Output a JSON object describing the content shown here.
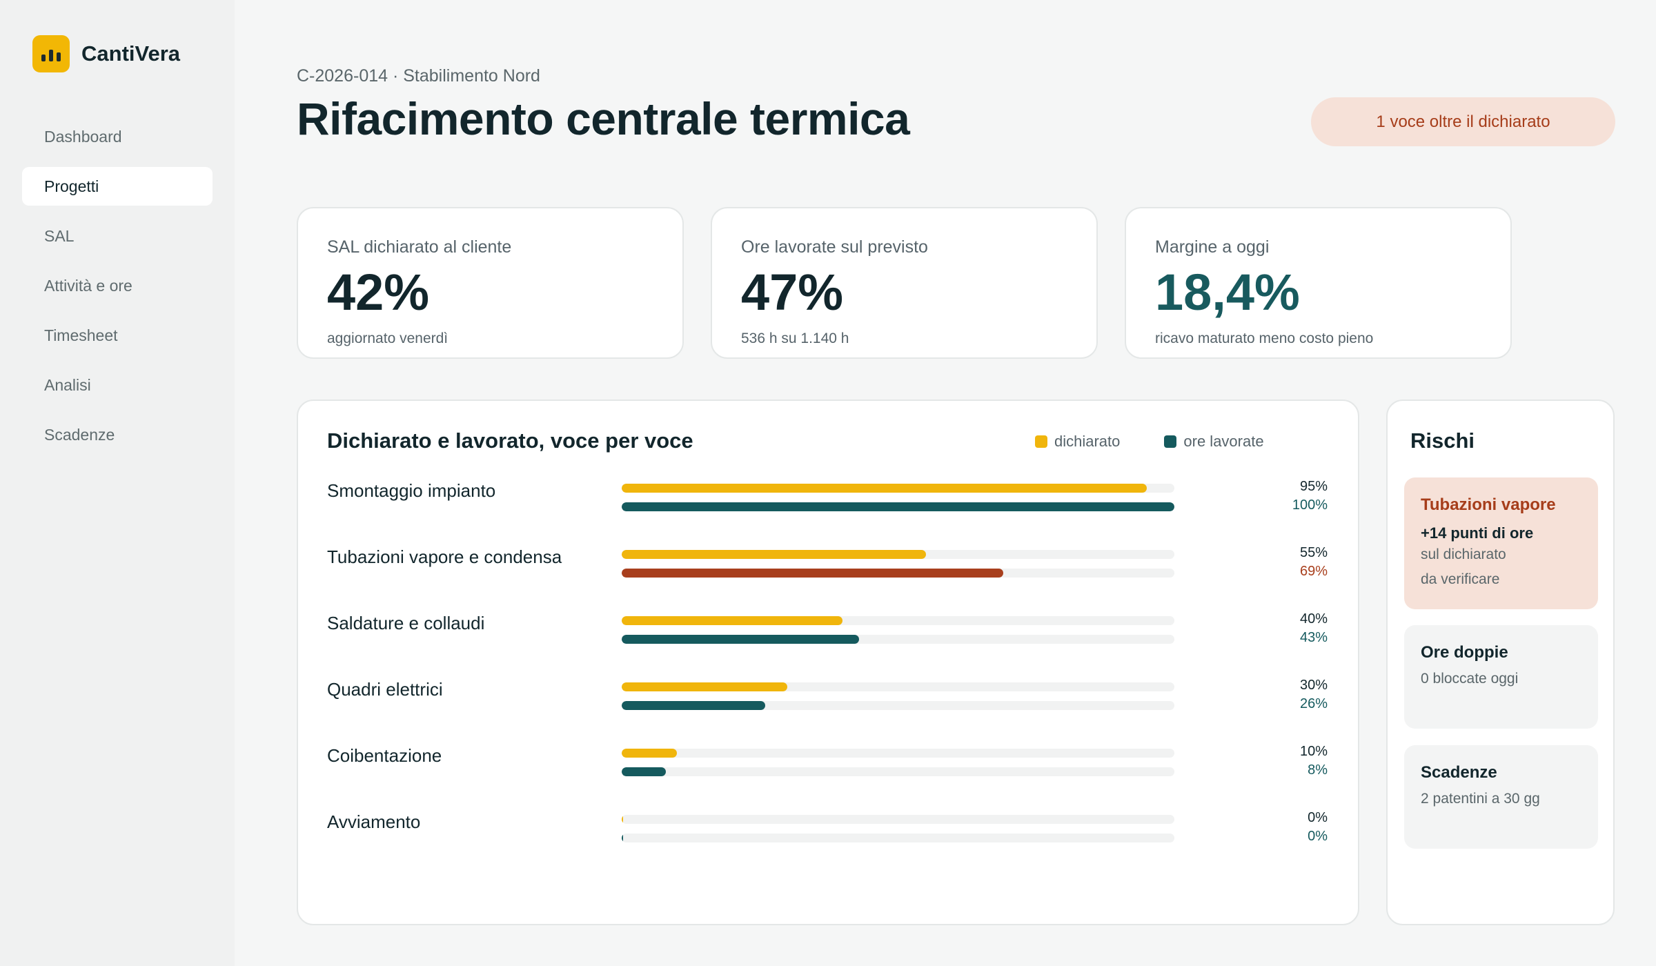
{
  "brand": {
    "name": "CantiVera",
    "icon": "bar-chart-icon",
    "color": "#f2b705"
  },
  "nav": [
    {
      "label": "Dashboard",
      "active": false
    },
    {
      "label": "Progetti",
      "active": true
    },
    {
      "label": "SAL",
      "active": false
    },
    {
      "label": "Attività e ore",
      "active": false
    },
    {
      "label": "Timesheet",
      "active": false
    },
    {
      "label": "Analisi",
      "active": false
    },
    {
      "label": "Scadenze",
      "active": false
    }
  ],
  "header": {
    "breadcrumb": "C-2026-014 · Stabilimento Nord",
    "title": "Rifacimento centrale termica",
    "alert": "1 voce oltre il dichiarato"
  },
  "kpis": [
    {
      "label": "SAL dichiarato al cliente",
      "value": "42%",
      "sub": "aggiornato venerdì"
    },
    {
      "label": "Ore lavorate sul previsto",
      "value": "47%",
      "sub": "536 h su 1.140 h"
    },
    {
      "label": "Margine a oggi",
      "value": "18,4%",
      "sub": "ricavo maturato meno costo pieno"
    }
  ],
  "chart_data": {
    "type": "bar",
    "title": "Dichiarato e lavorato, voce per voce",
    "categories": [
      "Smontaggio impianto",
      "Tubazioni vapore e condensa",
      "Saldature e collaudi",
      "Quadri elettrici",
      "Coibentazione",
      "Avviamento"
    ],
    "series": [
      {
        "name": "dichiarato",
        "values": [
          95,
          55,
          40,
          30,
          10,
          0
        ],
        "color": "#f0b50c"
      },
      {
        "name": "ore lavorate",
        "values": [
          100,
          69,
          43,
          26,
          8,
          0
        ],
        "color": "#155a5e"
      }
    ],
    "over_color": "#a83f1d",
    "xlim": [
      0,
      100
    ],
    "unit": "%",
    "legend_position": "top-right"
  },
  "risks": {
    "title": "Rischi",
    "cards": [
      {
        "title": "Tubazioni vapore",
        "strong": "+14 punti di ore",
        "lines": [
          "sul dichiarato",
          "da verificare"
        ],
        "warn": true
      },
      {
        "title": "Ore doppie",
        "strong": "",
        "lines": [
          "0 bloccate oggi"
        ],
        "warn": false
      },
      {
        "title": "Scadenze",
        "strong": "",
        "lines": [
          "2 patentini a 30 gg"
        ],
        "warn": false
      }
    ]
  }
}
